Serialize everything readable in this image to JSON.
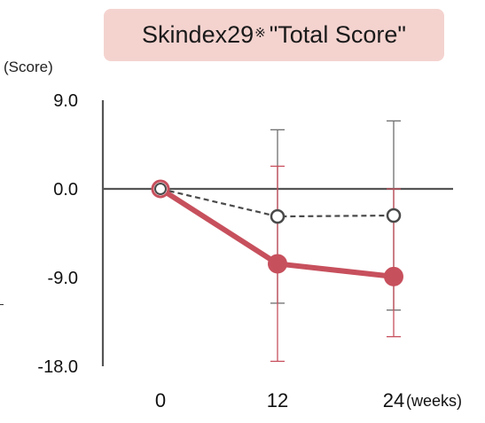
{
  "header": {
    "title_main": "Skindex29",
    "title_mark": "※",
    "title_rest": "\"Total Score\""
  },
  "y_unit": "(Score)",
  "colors": {
    "treatment": "#c7505d",
    "comparator": "#4a4a4a",
    "axis": "#555555",
    "title_bg": "#f4d3cf"
  },
  "chart_data": {
    "type": "line",
    "title": "Skindex29※ \"Total Score\"",
    "ylabel": "(Score)",
    "xlabel": "(weeks)",
    "ylim": [
      -18,
      9
    ],
    "yticks": [
      9,
      0,
      -9,
      -18
    ],
    "ytick_labels": [
      "9.0",
      "0.0",
      "-9.0",
      "-18.0"
    ],
    "x": [
      0,
      12,
      24
    ],
    "xtick_labels": [
      "0",
      "12",
      "24"
    ],
    "x_unit": "(weeks)",
    "grid": false,
    "series": [
      {
        "color": "#c7505d",
        "style": "solid",
        "marker": "filled-circle",
        "values": [
          0,
          -7.6,
          -8.9
        ],
        "error_low": [
          0,
          -17.5,
          -15.0
        ],
        "error_high": [
          0,
          2.3,
          0
        ]
      },
      {
        "color": "#4a4a4a",
        "style": "dashed",
        "marker": "open-circle",
        "values": [
          0,
          -2.8,
          -2.7
        ],
        "error_low": [
          0,
          -11.6,
          -12.3
        ],
        "error_high": [
          0,
          6.0,
          6.9
        ]
      }
    ]
  }
}
